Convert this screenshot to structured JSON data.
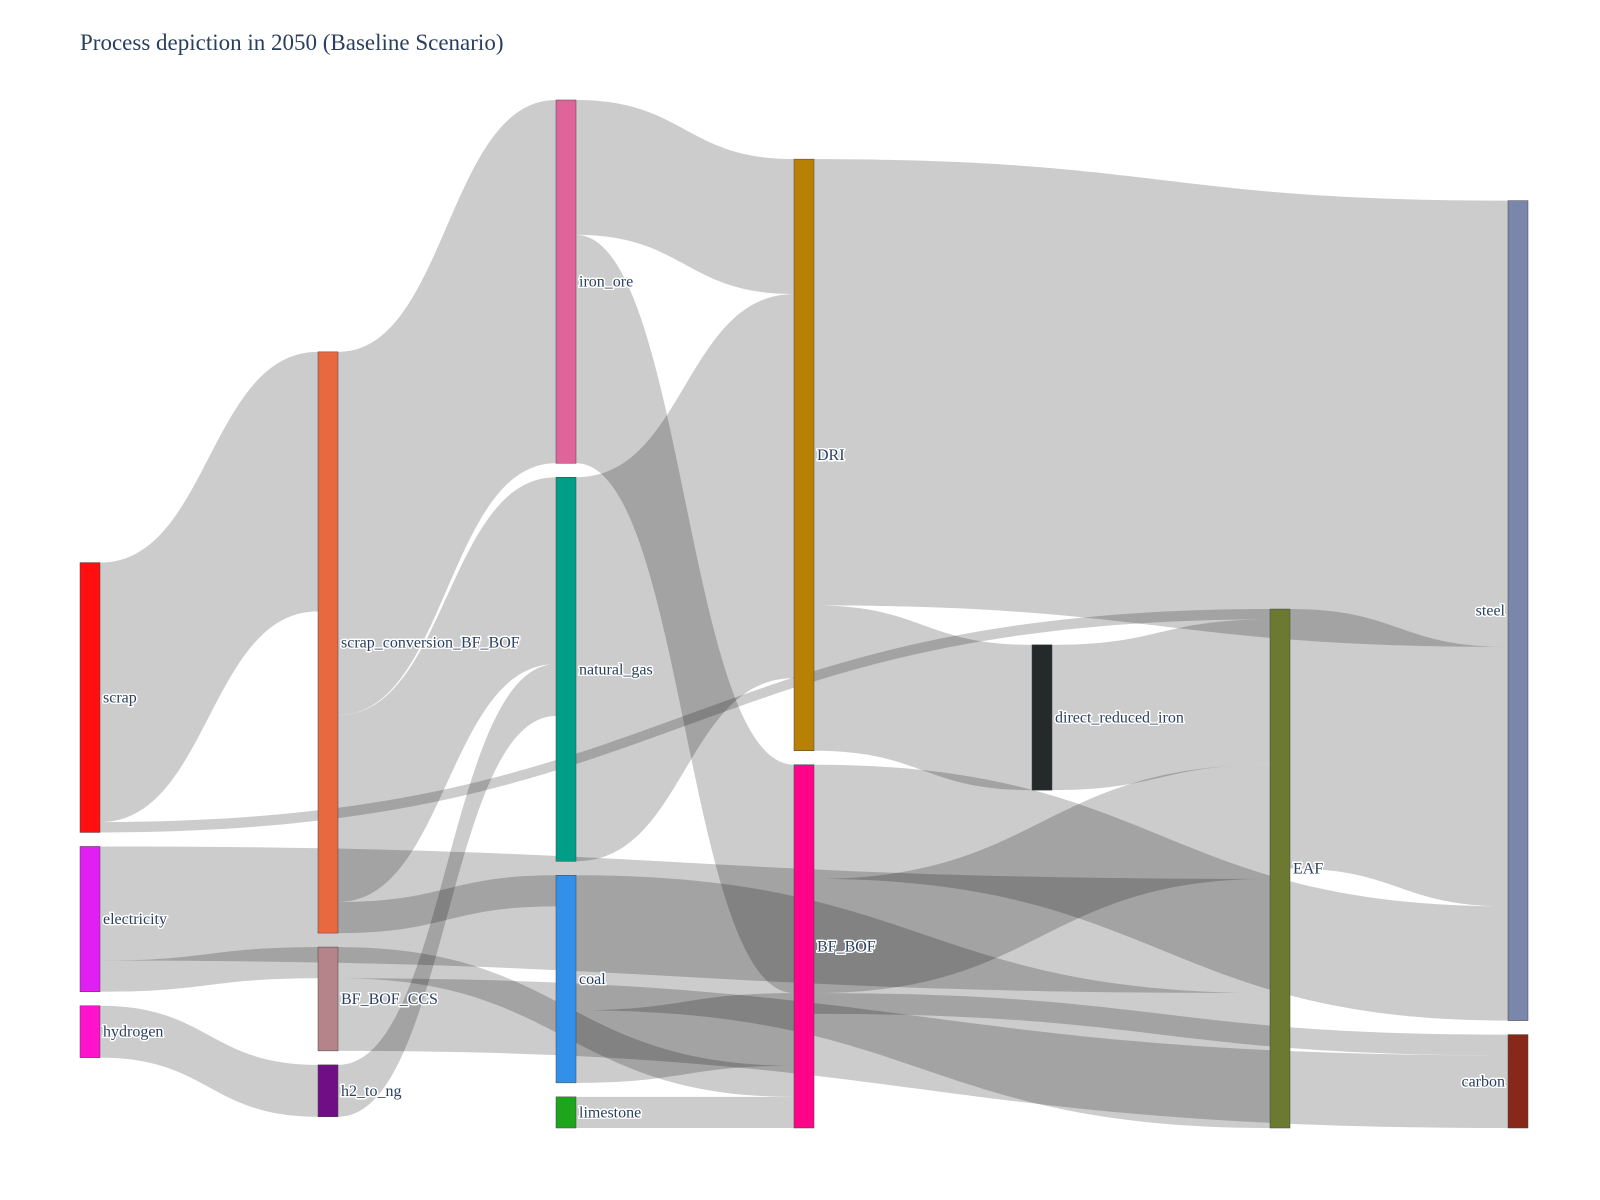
{
  "title": "Process depiction in 2050 (Baseline Scenario)",
  "chart_data": {
    "type": "sankey",
    "title": "Process depiction in 2050 (Baseline Scenario)",
    "nodes": [
      {
        "id": "scrap",
        "label": "scrap",
        "column": 0,
        "color": "#ff0f0f"
      },
      {
        "id": "electricity",
        "label": "electricity",
        "column": 0,
        "color": "#e11ff2"
      },
      {
        "id": "hydrogen",
        "label": "hydrogen",
        "column": 0,
        "color": "#ff12cc"
      },
      {
        "id": "scrap_conversion_BF_BOF",
        "label": "scrap_conversion_BF_BOF",
        "column": 1,
        "color": "#e8683f"
      },
      {
        "id": "BF_BOF_CCS",
        "label": "BF_BOF_CCS",
        "column": 1,
        "color": "#b5838a"
      },
      {
        "id": "h2_to_ng",
        "label": "h2_to_ng",
        "column": 1,
        "color": "#700e85"
      },
      {
        "id": "iron_ore",
        "label": "iron_ore",
        "column": 2,
        "color": "#e06499"
      },
      {
        "id": "natural_gas",
        "label": "natural_gas",
        "column": 2,
        "color": "#009e87"
      },
      {
        "id": "coal",
        "label": "coal",
        "column": 2,
        "color": "#3390e8"
      },
      {
        "id": "limestone",
        "label": "limestone",
        "column": 2,
        "color": "#1da51d"
      },
      {
        "id": "DRI",
        "label": "DRI",
        "column": 3,
        "color": "#b88004"
      },
      {
        "id": "BF_BOF",
        "label": "BF_BOF",
        "column": 3,
        "color": "#ff0388"
      },
      {
        "id": "direct_reduced_iron",
        "label": "direct_reduced_iron",
        "column": 4,
        "color": "#242a29"
      },
      {
        "id": "EAF",
        "label": "EAF",
        "column": 5,
        "color": "#6b7a30"
      },
      {
        "id": "steel",
        "label": "steel",
        "column": 6,
        "color": "#7a87aa"
      },
      {
        "id": "carbon",
        "label": "carbon",
        "column": 6,
        "color": "#872818"
      }
    ],
    "links": [
      {
        "source": "scrap",
        "target": "scrap_conversion_BF_BOF",
        "value": 25
      },
      {
        "source": "scrap",
        "target": "EAF",
        "value": 1
      },
      {
        "source": "electricity",
        "target": "EAF",
        "value": 11
      },
      {
        "source": "electricity",
        "target": "BF_BOF_CCS",
        "value": 3
      },
      {
        "source": "hydrogen",
        "target": "h2_to_ng",
        "value": 5
      },
      {
        "source": "h2_to_ng",
        "target": "natural_gas",
        "value": 5
      },
      {
        "source": "scrap_conversion_BF_BOF",
        "target": "iron_ore",
        "value": 35
      },
      {
        "source": "scrap_conversion_BF_BOF",
        "target": "natural_gas",
        "value": 18
      },
      {
        "source": "scrap_conversion_BF_BOF",
        "target": "coal",
        "value": 3
      },
      {
        "source": "BF_BOF_CCS",
        "target": "BF_BOF",
        "value": 3
      },
      {
        "source": "BF_BOF_CCS",
        "target": "carbon",
        "value": 7
      },
      {
        "source": "iron_ore",
        "target": "DRI",
        "value": 13
      },
      {
        "source": "iron_ore",
        "target": "BF_BOF",
        "value": 22
      },
      {
        "source": "natural_gas",
        "target": "DRI",
        "value": 37
      },
      {
        "source": "coal",
        "target": "EAF",
        "value": 13
      },
      {
        "source": "coal",
        "target": "BF_BOF",
        "value": 7
      },
      {
        "source": "limestone",
        "target": "BF_BOF",
        "value": 3
      },
      {
        "source": "DRI",
        "target": "direct_reduced_iron",
        "value": 14
      },
      {
        "source": "DRI",
        "target": "steel",
        "value": 43
      },
      {
        "source": "BF_BOF",
        "target": "EAF",
        "value": 11
      },
      {
        "source": "BF_BOF",
        "target": "carbon",
        "value": 2
      },
      {
        "source": "BF_BOF",
        "target": "steel",
        "value": 11
      },
      {
        "source": "direct_reduced_iron",
        "target": "EAF",
        "value": 14
      },
      {
        "source": "EAF",
        "target": "steel",
        "value": 25
      }
    ]
  }
}
